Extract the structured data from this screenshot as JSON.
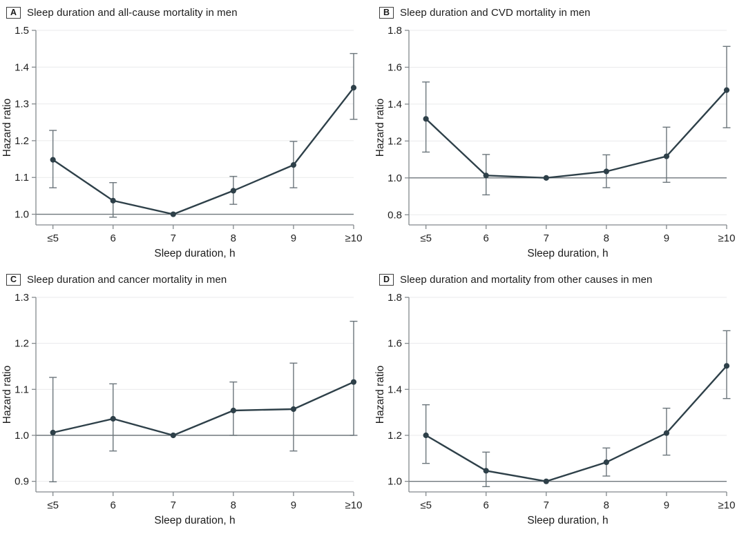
{
  "colors": {
    "series": "#2e4049",
    "error_bar": "#6b757b",
    "grid": "#e9eaeb",
    "axis": "#82888c",
    "reference": "#6e767b",
    "text": "#1f1f1f",
    "title_text": "#1c1c1c",
    "background": "#ffffff"
  },
  "chart_data": [
    {
      "type": "line",
      "panel_label": "A",
      "title": "Sleep duration and all-cause mortality in men",
      "xlabel": "Sleep duration, h",
      "ylabel": "Hazard ratio",
      "categories": [
        "≤5",
        "6",
        "7",
        "8",
        "9",
        "≥10"
      ],
      "values": [
        1.148,
        1.037,
        1.0,
        1.064,
        1.134,
        1.344
      ],
      "ci_lower": [
        1.072,
        0.992,
        null,
        1.027,
        1.072,
        1.258
      ],
      "ci_upper": [
        1.228,
        1.086,
        null,
        1.103,
        1.198,
        1.437
      ],
      "yticks": [
        1.0,
        1.1,
        1.2,
        1.3,
        1.4,
        1.5
      ],
      "ylim": [
        0.971,
        1.5
      ],
      "reference_line": 1.0,
      "reference_category": "7",
      "grid": true,
      "legend": "none"
    },
    {
      "type": "line",
      "panel_label": "B",
      "title": "Sleep duration and CVD mortality in men",
      "xlabel": "Sleep duration, h",
      "ylabel": "Hazard ratio",
      "categories": [
        "≤5",
        "6",
        "7",
        "8",
        "9",
        "≥10"
      ],
      "values": [
        1.32,
        1.013,
        1.0,
        1.035,
        1.117,
        1.476
      ],
      "ci_lower": [
        1.14,
        0.908,
        null,
        0.947,
        0.976,
        1.272
      ],
      "ci_upper": [
        1.52,
        1.127,
        null,
        1.125,
        1.275,
        1.713
      ],
      "yticks": [
        0.8,
        1.0,
        1.2,
        1.4,
        1.6,
        1.8
      ],
      "ylim": [
        0.745,
        1.8
      ],
      "reference_line": 1.0,
      "reference_category": "7",
      "grid": true,
      "legend": "none"
    },
    {
      "type": "line",
      "panel_label": "C",
      "title": "Sleep duration and cancer mortality in men",
      "xlabel": "Sleep duration, h",
      "ylabel": "Hazard ratio",
      "categories": [
        "≤5",
        "6",
        "7",
        "8",
        "9",
        "≥10"
      ],
      "values": [
        1.006,
        1.036,
        1.0,
        1.054,
        1.057,
        1.116
      ],
      "ci_lower": [
        0.899,
        0.966,
        null,
        1.0,
        0.966,
        1.0
      ],
      "ci_upper": [
        1.126,
        1.112,
        null,
        1.116,
        1.157,
        1.248
      ],
      "yticks": [
        0.9,
        1.0,
        1.1,
        1.2,
        1.3
      ],
      "ylim": [
        0.877,
        1.3
      ],
      "reference_line": 1.0,
      "reference_category": "7",
      "grid": true,
      "legend": "none"
    },
    {
      "type": "line",
      "panel_label": "D",
      "title": "Sleep duration and mortality from other causes in men",
      "xlabel": "Sleep duration, h",
      "ylabel": "Hazard ratio",
      "categories": [
        "≤5",
        "6",
        "7",
        "8",
        "9",
        "≥10"
      ],
      "values": [
        1.2,
        1.046,
        1.0,
        1.083,
        1.21,
        1.502
      ],
      "ci_lower": [
        1.078,
        0.977,
        null,
        1.023,
        1.114,
        1.36
      ],
      "ci_upper": [
        1.333,
        1.127,
        null,
        1.145,
        1.318,
        1.655
      ],
      "yticks": [
        1.0,
        1.2,
        1.4,
        1.6,
        1.8
      ],
      "ylim": [
        0.954,
        1.8
      ],
      "reference_line": 1.0,
      "reference_category": "7",
      "grid": true,
      "legend": "none"
    }
  ]
}
